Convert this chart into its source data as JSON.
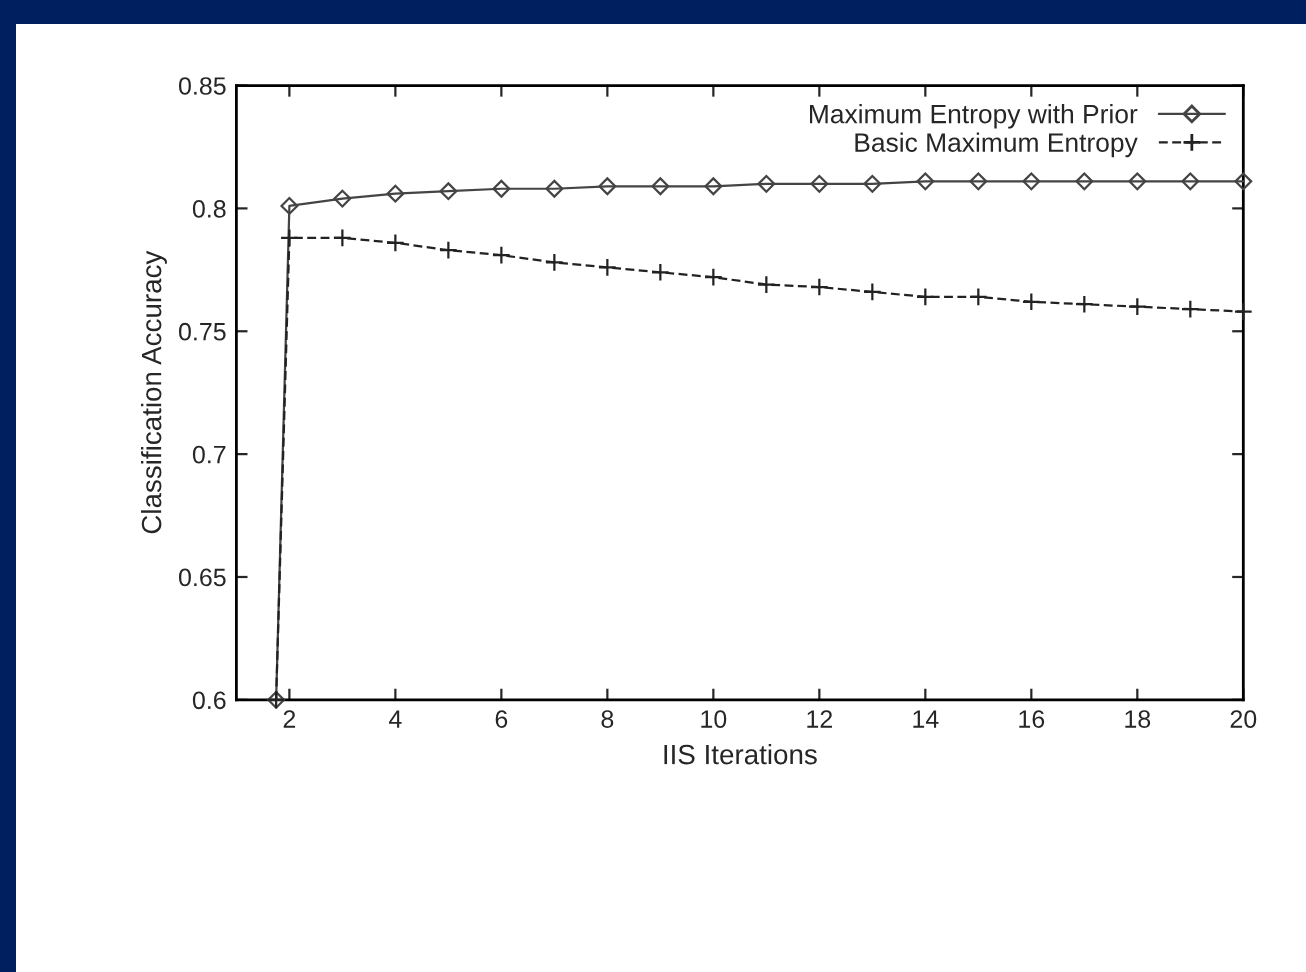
{
  "chart_data": {
    "type": "line",
    "xlabel": "IIS Iterations",
    "ylabel": "Classification Accuracy",
    "xlim": [
      1,
      20
    ],
    "xticks": [
      2,
      4,
      6,
      8,
      10,
      12,
      14,
      16,
      18,
      20
    ],
    "ylim": [
      0.6,
      0.85
    ],
    "yticks": [
      0.6,
      0.65,
      0.7,
      0.75,
      0.8,
      0.85
    ],
    "grid": false,
    "legend": "top right",
    "series": [
      {
        "name": "Maximum Entropy with Prior",
        "color": "#444444",
        "marker": "diamond",
        "line_style": "solid",
        "x": [
          1.75,
          2,
          3,
          4,
          5,
          6,
          7,
          8,
          9,
          10,
          11,
          12,
          13,
          14,
          15,
          16,
          17,
          18,
          19,
          20
        ],
        "values": [
          0.6,
          0.801,
          0.804,
          0.806,
          0.807,
          0.808,
          0.808,
          0.809,
          0.809,
          0.809,
          0.81,
          0.81,
          0.81,
          0.811,
          0.811,
          0.811,
          0.811,
          0.811,
          0.811,
          0.811
        ]
      },
      {
        "name": "Basic Maximum Entropy",
        "color": "#222222",
        "marker": "cross",
        "line_style": "dashed",
        "x": [
          1.75,
          2,
          3,
          4,
          5,
          6,
          7,
          8,
          9,
          10,
          11,
          12,
          13,
          14,
          15,
          16,
          17,
          18,
          19,
          20
        ],
        "values": [
          0.6,
          0.788,
          0.788,
          0.786,
          0.783,
          0.781,
          0.778,
          0.776,
          0.774,
          0.772,
          0.769,
          0.768,
          0.766,
          0.764,
          0.764,
          0.762,
          0.761,
          0.76,
          0.759,
          0.758
        ]
      }
    ]
  }
}
